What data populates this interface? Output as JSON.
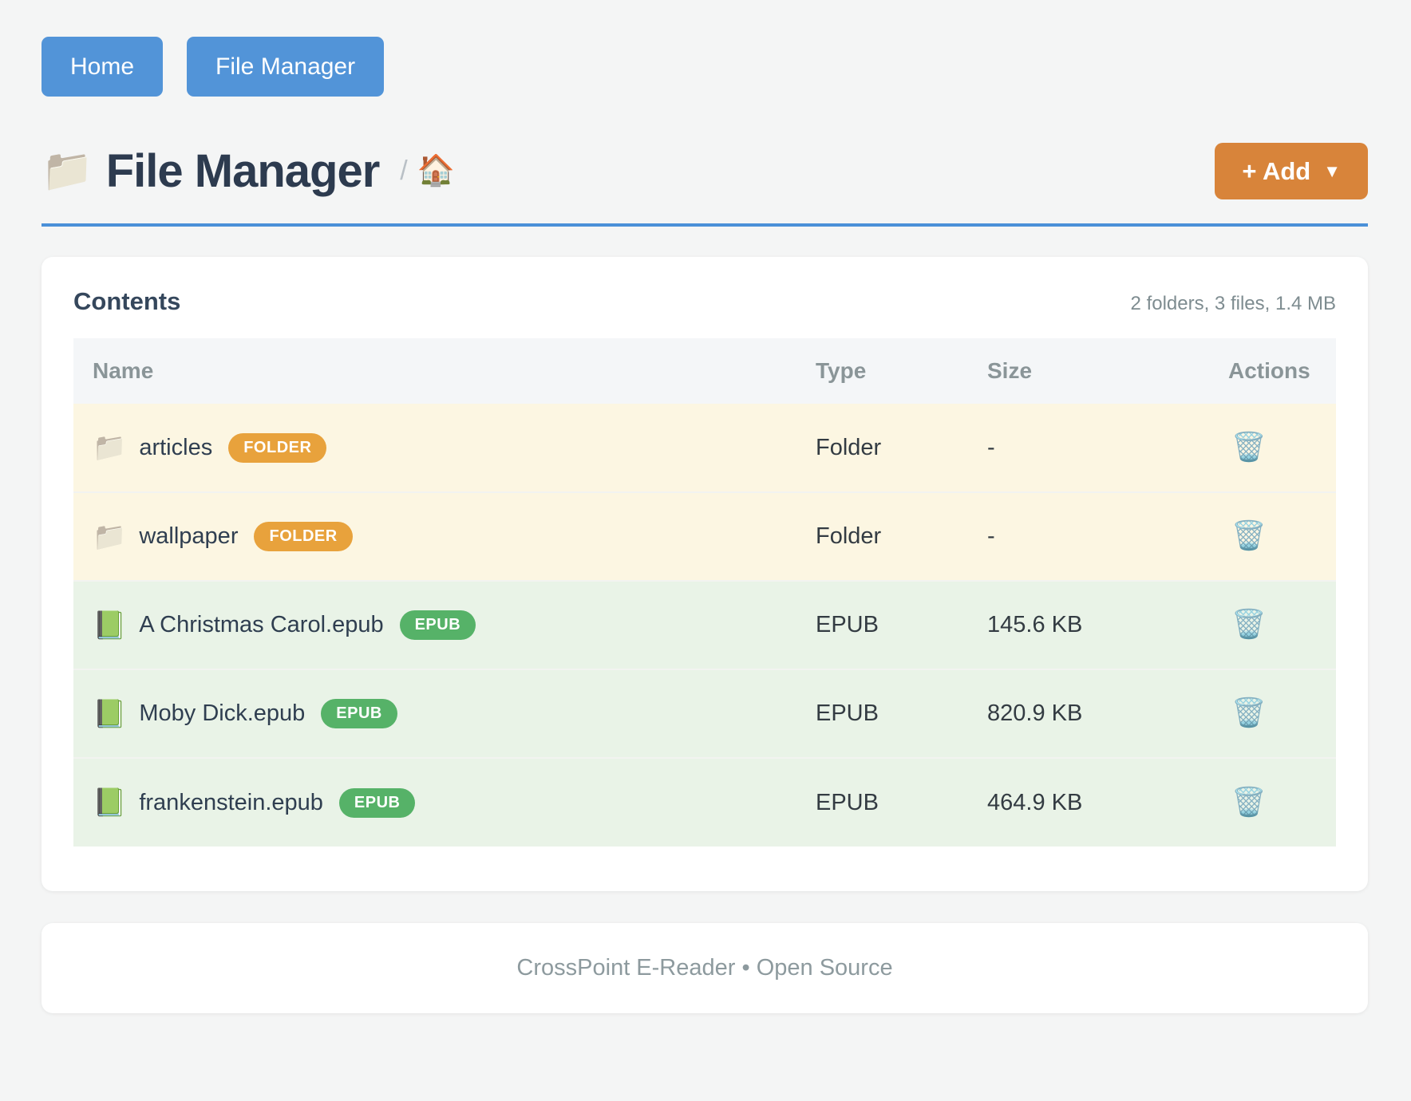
{
  "nav": {
    "home_label": "Home",
    "file_manager_label": "File Manager"
  },
  "header": {
    "title_icon": "📁",
    "title": "File Manager",
    "breadcrumb_separator": "/",
    "breadcrumb_home_icon": "🏠",
    "add_button": {
      "label": "+ Add",
      "caret": "▼"
    }
  },
  "content": {
    "card_title": "Contents",
    "summary": "2 folders, 3 files, 1.4 MB",
    "table": {
      "columns": [
        "Name",
        "Type",
        "Size",
        "Actions"
      ],
      "action_icon": "🗑️",
      "rows": [
        {
          "icon": "📁",
          "name": "articles",
          "badge": "FOLDER",
          "badge_type": "folder",
          "type": "Folder",
          "size": "-"
        },
        {
          "icon": "📁",
          "name": "wallpaper",
          "badge": "FOLDER",
          "badge_type": "folder",
          "type": "Folder",
          "size": "-"
        },
        {
          "icon": "📗",
          "name": "A Christmas Carol.epub",
          "badge": "EPUB",
          "badge_type": "epub",
          "type": "EPUB",
          "size": "145.6 KB"
        },
        {
          "icon": "📗",
          "name": "Moby Dick.epub",
          "badge": "EPUB",
          "badge_type": "epub",
          "type": "EPUB",
          "size": "820.9 KB"
        },
        {
          "icon": "📗",
          "name": "frankenstein.epub",
          "badge": "EPUB",
          "badge_type": "epub",
          "type": "EPUB",
          "size": "464.9 KB"
        }
      ]
    }
  },
  "footer": {
    "text": "CrossPoint E-Reader • Open Source"
  },
  "colors": {
    "page_background": "#f4f5f5",
    "nav_button_blue": "#5294d8",
    "title_rule_blue": "#4a90d8",
    "add_button_orange": "#d8843a",
    "folder_badge_orange": "#e8a23c",
    "epub_badge_green": "#56b268",
    "folder_row_background": "#fcf6e2",
    "epub_row_background": "#e9f3e7",
    "table_header_background": "#f4f6f8",
    "heading_text": "#2d3b4f",
    "muted_text": "#8a9598"
  }
}
